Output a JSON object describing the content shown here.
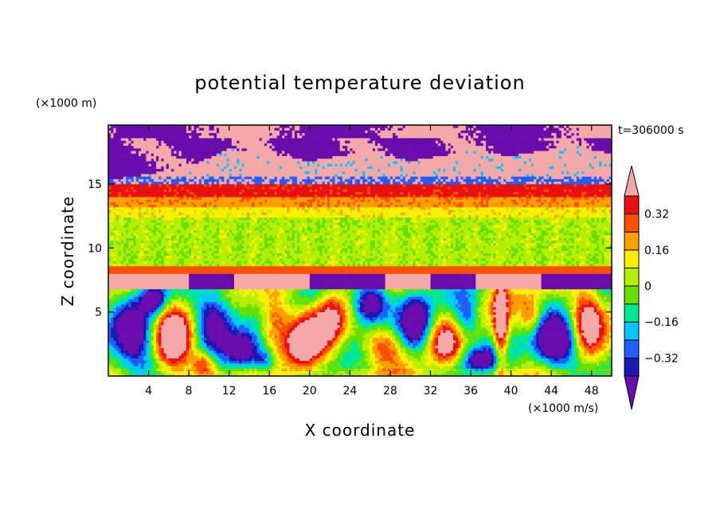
{
  "chart_data": {
    "type": "heatmap",
    "title": "potential temperature deviation",
    "xlabel": "X coordinate",
    "ylabel": "Z coordinate",
    "x_unit": "(×1000 m/s)",
    "y_unit": "(×1000 m)",
    "time_label": "t=306000 s",
    "xlim": [
      0,
      50
    ],
    "ylim": [
      0,
      19.6
    ],
    "x_ticks": [
      4,
      8,
      12,
      16,
      20,
      24,
      28,
      32,
      36,
      40,
      44,
      48
    ],
    "y_ticks": [
      5,
      10,
      15
    ],
    "colorbar": {
      "levels": [
        -0.4,
        -0.32,
        -0.24,
        -0.16,
        -0.08,
        0,
        0.08,
        0.16,
        0.24,
        0.32,
        0.4
      ],
      "labels": [
        "-0.32",
        "-0.16",
        "0",
        "0.16",
        "0.32"
      ],
      "label_values": [
        -0.32,
        -0.16,
        0,
        0.16,
        0.32
      ],
      "colors": [
        "#6a0dad",
        "#1a1ab0",
        "#1e5fff",
        "#00c8ff",
        "#00e890",
        "#66e000",
        "#b4ee00",
        "#ffee00",
        "#ffa000",
        "#ff5000",
        "#e81010",
        "#f4a8a8"
      ],
      "extend": "both"
    }
  }
}
